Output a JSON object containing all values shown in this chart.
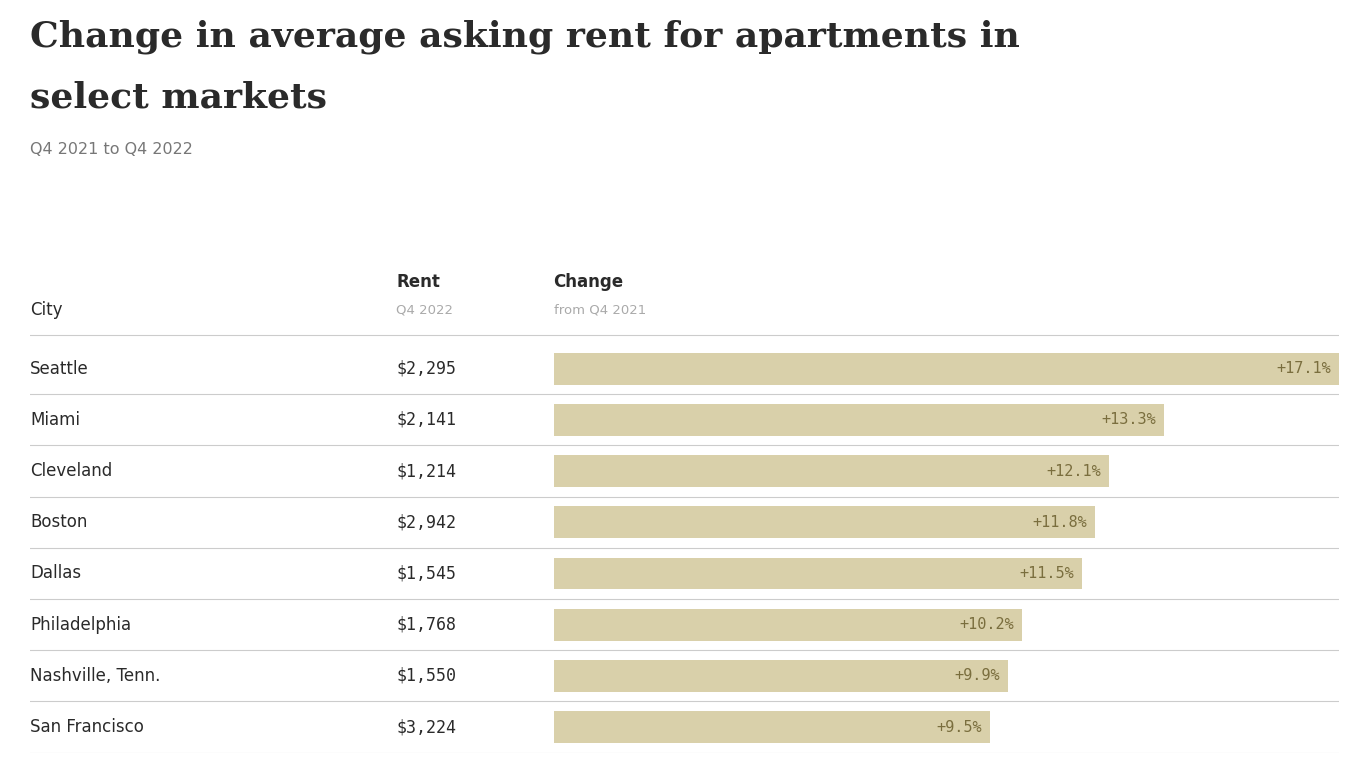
{
  "title_line1": "Change in average asking rent for apartments in",
  "title_line2": "select markets",
  "subtitle": "Q4 2021 to Q4 2022",
  "col_header_city": "City",
  "col_header_rent": "Rent",
  "col_header_rent_sub": "Q4 2022",
  "col_header_change": "Change",
  "col_header_change_sub": "from Q4 2021",
  "cities": [
    "Seattle",
    "Miami",
    "Cleveland",
    "Boston",
    "Dallas",
    "Philadelphia",
    "Nashville, Tenn.",
    "San Francisco"
  ],
  "rents": [
    "$2,295",
    "$2,141",
    "$1,214",
    "$2,942",
    "$1,545",
    "$1,768",
    "$1,550",
    "$3,224"
  ],
  "changes": [
    17.1,
    13.3,
    12.1,
    11.8,
    11.5,
    10.2,
    9.9,
    9.5
  ],
  "change_labels": [
    "+17.1%",
    "+13.3%",
    "+12.1%",
    "+11.8%",
    "+11.5%",
    "+10.2%",
    "+9.9%",
    "+9.5%"
  ],
  "bar_color": "#d9d0aa",
  "text_color": "#2a2a2a",
  "subtitle_color": "#777777",
  "header_sub_color": "#aaaaaa",
  "change_text_color": "#7a6e3e",
  "separator_color": "#cccccc",
  "background_color": "#ffffff",
  "max_change": 17.1
}
